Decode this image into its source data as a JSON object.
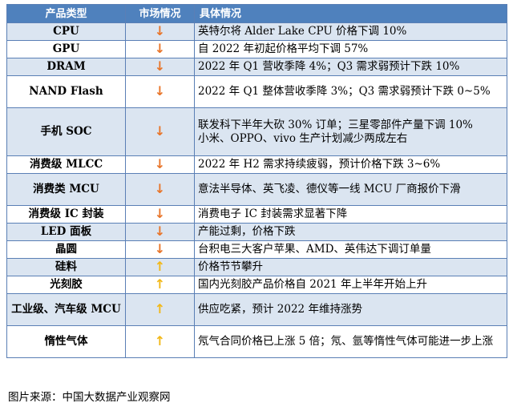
{
  "header": {
    "col1": "产品类型",
    "col2": "市场情况",
    "col3": "具体情况"
  },
  "trend_colors": {
    "down": "#e8752a",
    "up": "#f2b818"
  },
  "rows": [
    {
      "name": "CPU",
      "trend": "down",
      "arrow": "↓",
      "detail": "英特尔将 Alder Lake CPU 价格下调 10%"
    },
    {
      "name": "GPU",
      "trend": "down",
      "arrow": "↓",
      "detail": "自 2022 年初起价格平均下调 57%"
    },
    {
      "name": "DRAM",
      "trend": "down",
      "arrow": "↓",
      "detail": "2022 年 Q1 营收季降 4%；Q3 需求弱预计下跌 10%"
    },
    {
      "name": "NAND Flash",
      "trend": "down",
      "arrow": "↓",
      "detail": "2022 年 Q1 整体营收季降 3%；Q3 需求弱预计下跌 0~5%"
    },
    {
      "name": "手机 SOC",
      "trend": "down",
      "arrow": "↓",
      "detail": "联发科下半年大砍 30% 订单；三星零部件产量下调 10%",
      "detail2": "小米、OPPO、vivo 生产计划减少两成左右"
    },
    {
      "name": "消费级 MLCC",
      "trend": "down",
      "arrow": "↓",
      "detail": "2022 年 H2 需求持续疲弱，预计价格下跌 3~6%"
    },
    {
      "name": "消费类 MCU",
      "trend": "down",
      "arrow": "↓",
      "detail": "意法半导体、英飞凌、德仪等一线 MCU 厂商报价下滑"
    },
    {
      "name": "消费级 IC 封装",
      "trend": "down",
      "arrow": "↓",
      "detail": "消费电子 IC 封装需求显著下降"
    },
    {
      "name": "LED 面板",
      "trend": "down",
      "arrow": "↓",
      "detail": "产能过剩，价格下跌"
    },
    {
      "name": "晶圆",
      "trend": "down",
      "arrow": "↓",
      "detail": "台积电三大客户苹果、AMD、英伟达下调订单量"
    },
    {
      "name": "硅料",
      "trend": "up",
      "arrow": "↑",
      "detail": "价格节节攀升"
    },
    {
      "name": "光刻胶",
      "trend": "up",
      "arrow": "↑",
      "detail": "国内光刻胶产品价格自 2021 年上半年开始上升"
    },
    {
      "name": "工业级、汽车级 MCU",
      "trend": "up",
      "arrow": "↑",
      "detail": "供应吃紧，预计 2022 年维持涨势"
    },
    {
      "name": "惰性气体",
      "trend": "up",
      "arrow": "↑",
      "detail": "氖气合同价格已上涨 5 倍；氖、氩等惰性气体可能进一步上涨"
    }
  ],
  "source": "图片来源：中国大数据产业观察网"
}
